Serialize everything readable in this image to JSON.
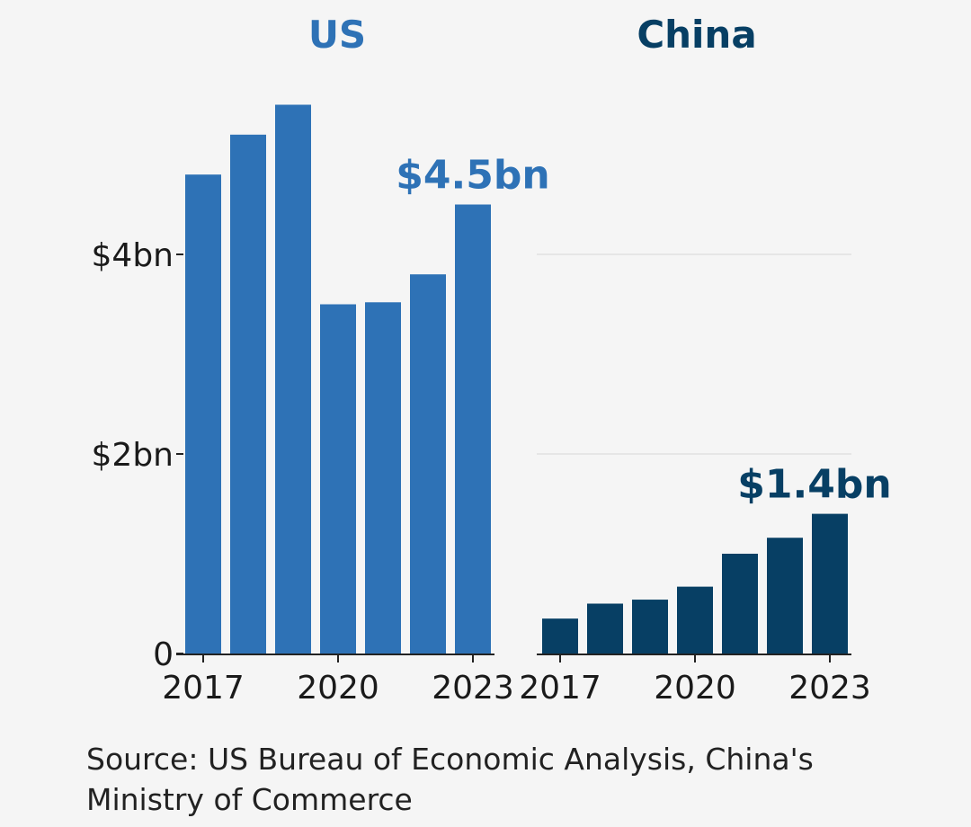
{
  "chart_data": [
    {
      "type": "bar",
      "title": "US",
      "color": "#2e72b6",
      "categories": [
        "2017",
        "2018",
        "2019",
        "2020",
        "2021",
        "2022",
        "2023"
      ],
      "values": [
        4.8,
        5.2,
        5.5,
        3.5,
        3.52,
        3.8,
        4.5
      ],
      "x_tick_labels": [
        "2017",
        "2020",
        "2023"
      ],
      "y_tick_labels": [
        "0",
        "$2bn",
        "$4bn"
      ],
      "y_ticks": [
        0,
        2,
        4
      ],
      "ylim": [
        0,
        5.5
      ],
      "data_label": "$4.5bn",
      "grid": false
    },
    {
      "type": "bar",
      "title": "China",
      "color": "#073f64",
      "categories": [
        "2017",
        "2018",
        "2019",
        "2020",
        "2021",
        "2022",
        "2023"
      ],
      "values": [
        0.35,
        0.5,
        0.54,
        0.67,
        1.0,
        1.16,
        1.4
      ],
      "x_tick_labels": [
        "2017",
        "2020",
        "2023"
      ],
      "y_ticks": [
        0,
        2,
        4
      ],
      "ylim": [
        0,
        5.5
      ],
      "data_label": "$1.4bn",
      "grid": true
    }
  ],
  "source": "Source: US Bureau of Economic Analysis, China's Ministry of Commerce"
}
